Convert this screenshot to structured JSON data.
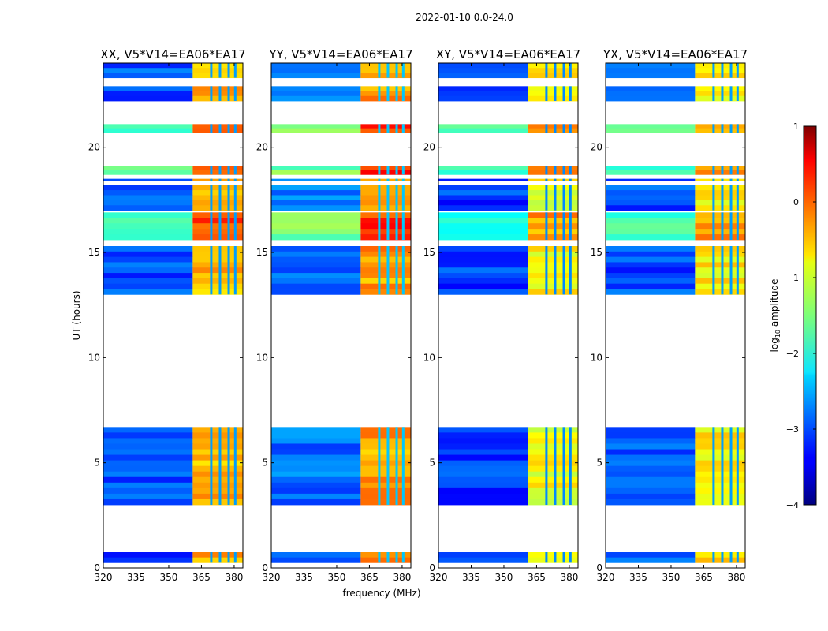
{
  "figure": {
    "suptitle": "2022-01-10 0.0-24.0"
  },
  "colors": {
    "axes": "#000000",
    "blank": "#ffffff"
  },
  "chart_data": {
    "type": "heatmap",
    "xlabel": "frequency (MHz)",
    "ylabel": "UT (hours)",
    "xlim": [
      320,
      384
    ],
    "ylim": [
      0,
      24
    ],
    "xticks": [
      320,
      335,
      350,
      365,
      380
    ],
    "yticks": [
      0,
      5,
      10,
      15,
      20
    ],
    "panels": [
      {
        "title": "XX, V5*V14=EA06*EA17",
        "base_log": -3.0,
        "band_log": -0.5,
        "band_start_mhz": 361
      },
      {
        "title": "YY, V5*V14=EA06*EA17",
        "base_log": -2.8,
        "band_log": -0.4,
        "band_start_mhz": 361
      },
      {
        "title": "XY, V5*V14=EA06*EA17",
        "base_log": -3.1,
        "band_log": -0.9,
        "band_start_mhz": 361
      },
      {
        "title": "YX, V5*V14=EA06*EA17",
        "base_log": -3.0,
        "band_log": -0.8,
        "band_start_mhz": 361
      }
    ],
    "data_time_ranges_hours": [
      [
        0.25,
        0.75
      ],
      [
        3.0,
        6.7
      ],
      [
        13.0,
        15.3
      ],
      [
        15.6,
        16.9
      ],
      [
        17.0,
        18.2
      ],
      [
        18.4,
        18.5
      ],
      [
        18.7,
        19.1
      ],
      [
        20.7,
        21.1
      ],
      [
        22.2,
        22.9
      ],
      [
        23.3,
        24.0
      ]
    ],
    "hot_time_ranges_hours": [
      [
        15.6,
        16.9
      ],
      [
        18.7,
        19.1
      ],
      [
        20.7,
        21.1
      ]
    ],
    "rfi_channel_gaps_mhz": [
      369.5,
      373.5,
      377.5,
      380.5
    ],
    "colorbar": {
      "label": "log10 amplitude",
      "label_main": "log",
      "label_sub": "10",
      "label_rest": " amplitude",
      "range": [
        -4,
        1
      ],
      "ticks": [
        -4,
        -3,
        -2,
        -1,
        0,
        1
      ],
      "colormap": "jet"
    }
  }
}
